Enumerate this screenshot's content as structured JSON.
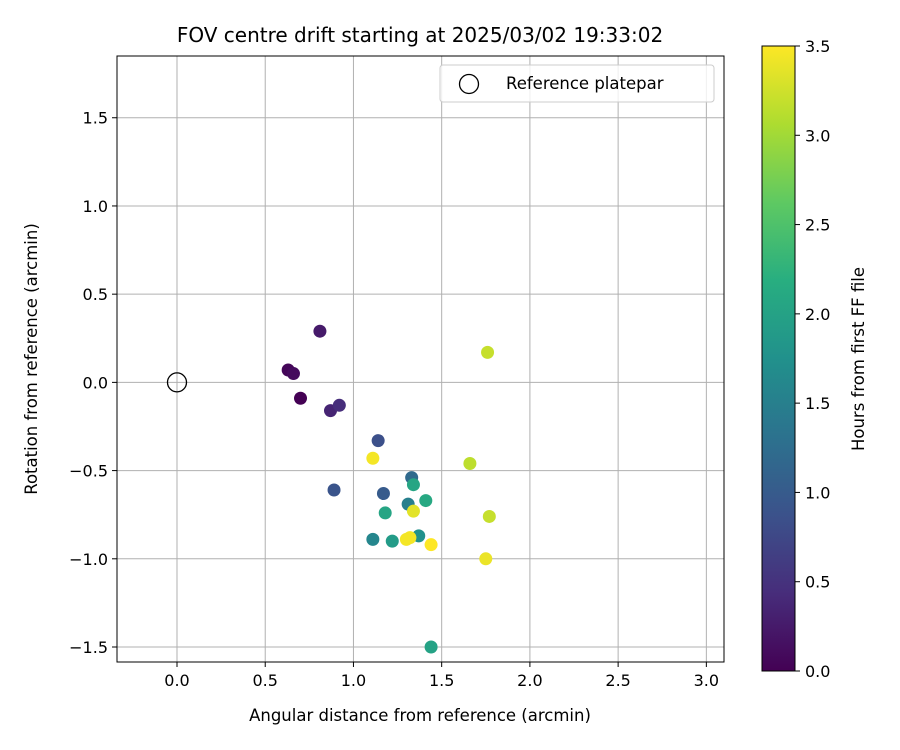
{
  "chart_data": {
    "type": "scatter",
    "title": "FOV centre drift starting at 2025/03/02 19:33:02",
    "xlabel": "Angular distance from reference (arcmin)",
    "ylabel": "Rotation from reference (arcmin)",
    "xlim": [
      -0.34,
      3.1
    ],
    "ylim": [
      -1.585,
      1.85
    ],
    "xticks": [
      0.0,
      0.5,
      1.0,
      1.5,
      2.0,
      2.5,
      3.0
    ],
    "xtick_labels": [
      "0.0",
      "0.5",
      "1.0",
      "1.5",
      "2.0",
      "2.5",
      "3.0"
    ],
    "yticks": [
      -1.5,
      -1.0,
      -0.5,
      0.0,
      0.5,
      1.0,
      1.5
    ],
    "ytick_labels": [
      "−1.5",
      "−1.0",
      "−0.5",
      "0.0",
      "0.5",
      "1.0",
      "1.5"
    ],
    "grid": true,
    "legend": {
      "placement": "top-right",
      "entries": [
        "Reference platepar"
      ]
    },
    "reference_point": {
      "x": 0.0,
      "y": 0.0,
      "label": "Reference platepar"
    },
    "colorbar": {
      "label": "Hours from first FF file",
      "colormap": "viridis",
      "range": [
        0.0,
        3.5
      ],
      "ticks": [
        0.0,
        0.5,
        1.0,
        1.5,
        2.0,
        2.5,
        3.0,
        3.5
      ],
      "tick_labels": [
        "0.0",
        "0.5",
        "1.0",
        "1.5",
        "2.0",
        "2.5",
        "3.0",
        "3.5"
      ]
    },
    "points": [
      {
        "x": 0.7,
        "y": -0.09,
        "hours": 0.0
      },
      {
        "x": 0.63,
        "y": 0.07,
        "hours": 0.05
      },
      {
        "x": 0.66,
        "y": 0.05,
        "hours": 0.1
      },
      {
        "x": 0.81,
        "y": 0.29,
        "hours": 0.25
      },
      {
        "x": 0.87,
        "y": -0.16,
        "hours": 0.35
      },
      {
        "x": 0.92,
        "y": -0.13,
        "hours": 0.45
      },
      {
        "x": 1.14,
        "y": -0.33,
        "hours": 0.85
      },
      {
        "x": 0.89,
        "y": -0.61,
        "hours": 0.9
      },
      {
        "x": 1.17,
        "y": -0.63,
        "hours": 1.0
      },
      {
        "x": 1.33,
        "y": -0.54,
        "hours": 1.2
      },
      {
        "x": 1.31,
        "y": -0.69,
        "hours": 1.5
      },
      {
        "x": 1.11,
        "y": -0.89,
        "hours": 1.6
      },
      {
        "x": 1.37,
        "y": -0.87,
        "hours": 1.75
      },
      {
        "x": 1.22,
        "y": -0.9,
        "hours": 1.9
      },
      {
        "x": 1.18,
        "y": -0.74,
        "hours": 2.05
      },
      {
        "x": 1.34,
        "y": -0.58,
        "hours": 2.05
      },
      {
        "x": 1.41,
        "y": -0.67,
        "hours": 2.1
      },
      {
        "x": 1.44,
        "y": -1.5,
        "hours": 2.0
      },
      {
        "x": 1.76,
        "y": 0.17,
        "hours": 3.2
      },
      {
        "x": 1.66,
        "y": -0.46,
        "hours": 3.15
      },
      {
        "x": 1.77,
        "y": -0.76,
        "hours": 3.2
      },
      {
        "x": 1.34,
        "y": -0.73,
        "hours": 3.35
      },
      {
        "x": 1.75,
        "y": -1.0,
        "hours": 3.4
      },
      {
        "x": 1.11,
        "y": -0.43,
        "hours": 3.45
      },
      {
        "x": 1.3,
        "y": -0.89,
        "hours": 3.45
      },
      {
        "x": 1.32,
        "y": -0.88,
        "hours": 3.45
      },
      {
        "x": 1.44,
        "y": -0.92,
        "hours": 3.5
      }
    ]
  }
}
